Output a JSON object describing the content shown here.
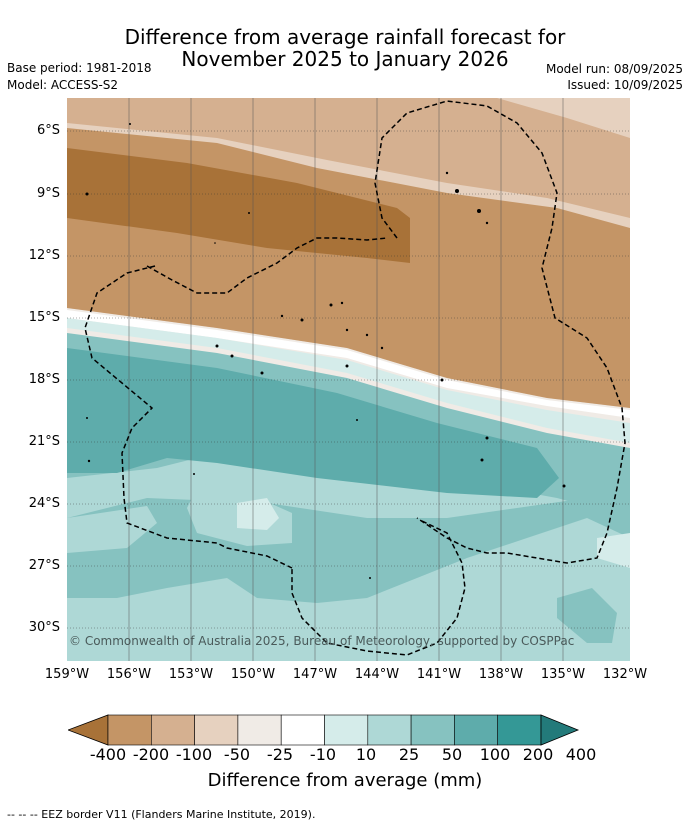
{
  "title": {
    "line1": "Difference from average rainfall forecast for",
    "line2": "November 2025 to January 2026"
  },
  "meta": {
    "base_period": "Base period: 1981-2018",
    "model": "Model: ACCESS-S2",
    "model_run": "Model run: 08/09/2025",
    "issued": "Issued: 10/09/2025"
  },
  "map": {
    "lat_labels": [
      "6°S",
      "9°S",
      "12°S",
      "15°S",
      "18°S",
      "21°S",
      "24°S",
      "27°S",
      "30°S"
    ],
    "lon_labels": [
      "159°W",
      "156°W",
      "153°W",
      "150°W",
      "147°W",
      "144°W",
      "141°W",
      "138°W",
      "135°W",
      "132°W"
    ],
    "copyright": "© Commonwealth of Australia 2025, Bureau of Meteorology, supported by COSPPac"
  },
  "colorbar": {
    "ticks": [
      "-400",
      "-200",
      "-100",
      "-50",
      "-25",
      "-10",
      "10",
      "25",
      "50",
      "100",
      "200",
      "400"
    ],
    "colors": [
      "#a87238",
      "#c49566",
      "#d5b090",
      "#e6d1bf",
      "#f0ebe6",
      "#ffffff",
      "#d5ecea",
      "#aed8d6",
      "#86c2c0",
      "#5eacab",
      "#349896",
      "#237a7a"
    ],
    "title": "Difference from average (mm)"
  },
  "legend": {
    "eez": "-- -- -- EEZ border V11 (Flanders Marine Institute, 2019)."
  }
}
